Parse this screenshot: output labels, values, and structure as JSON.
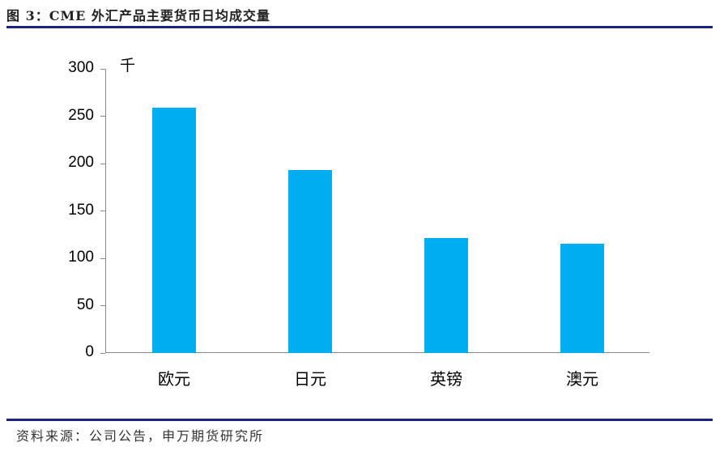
{
  "header": {
    "title": "图 3：CME 外汇产品主要货币日均成交量"
  },
  "footer": {
    "source": "资料来源：公司公告，申万期货研究所"
  },
  "chart_data": {
    "type": "bar",
    "title": "CME 外汇产品主要货币日均成交量",
    "categories": [
      "欧元",
      "日元",
      "英镑",
      "澳元"
    ],
    "values": [
      259,
      193,
      121,
      115
    ],
    "xlabel": "",
    "ylabel": "千",
    "unit_label": "千",
    "ylim": [
      0,
      300
    ],
    "yticks": [
      "0",
      "50",
      "100",
      "150",
      "200",
      "250",
      "300"
    ],
    "grid": false,
    "legend": null,
    "bar_color": "#00aeef"
  }
}
